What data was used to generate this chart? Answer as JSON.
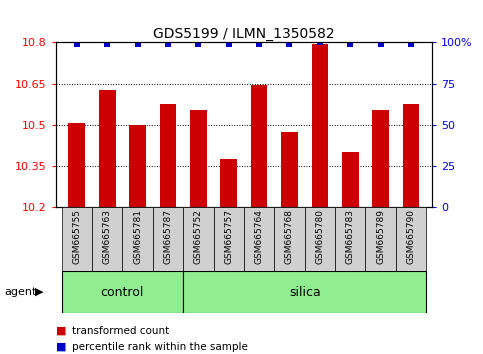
{
  "title": "GDS5199 / ILMN_1350582",
  "samples": [
    "GSM665755",
    "GSM665763",
    "GSM665781",
    "GSM665787",
    "GSM665752",
    "GSM665757",
    "GSM665764",
    "GSM665768",
    "GSM665780",
    "GSM665783",
    "GSM665789",
    "GSM665790"
  ],
  "bar_values": [
    10.505,
    10.625,
    10.5,
    10.575,
    10.555,
    10.375,
    10.645,
    10.475,
    10.795,
    10.4,
    10.555,
    10.575
  ],
  "percentile_values": [
    99,
    99,
    99,
    99,
    99,
    99,
    99,
    99,
    100,
    99,
    99,
    99
  ],
  "bar_color": "#cc0000",
  "dot_color": "#0000cc",
  "ymin": 10.2,
  "ymax": 10.8,
  "yticks_left": [
    10.2,
    10.35,
    10.5,
    10.65,
    10.8
  ],
  "ytick_labels_left": [
    "10.2",
    "10.35",
    "10.5",
    "10.65",
    "10.8"
  ],
  "right_yticks": [
    0,
    25,
    50,
    75,
    100
  ],
  "right_ytick_labels": [
    "0",
    "25",
    "50",
    "75",
    "100%"
  ],
  "control_count": 4,
  "silica_count": 8,
  "agent_label": "agent",
  "legend1_label": "transformed count",
  "legend2_label": "percentile rank within the sample",
  "bar_width": 0.55,
  "group_bg_color": "#90ee90",
  "sample_box_color": "#d0d0d0",
  "title_fontsize": 10,
  "axis_label_fontsize": 8,
  "sample_fontsize": 6.5,
  "legend_fontsize": 7.5,
  "group_fontsize": 9
}
